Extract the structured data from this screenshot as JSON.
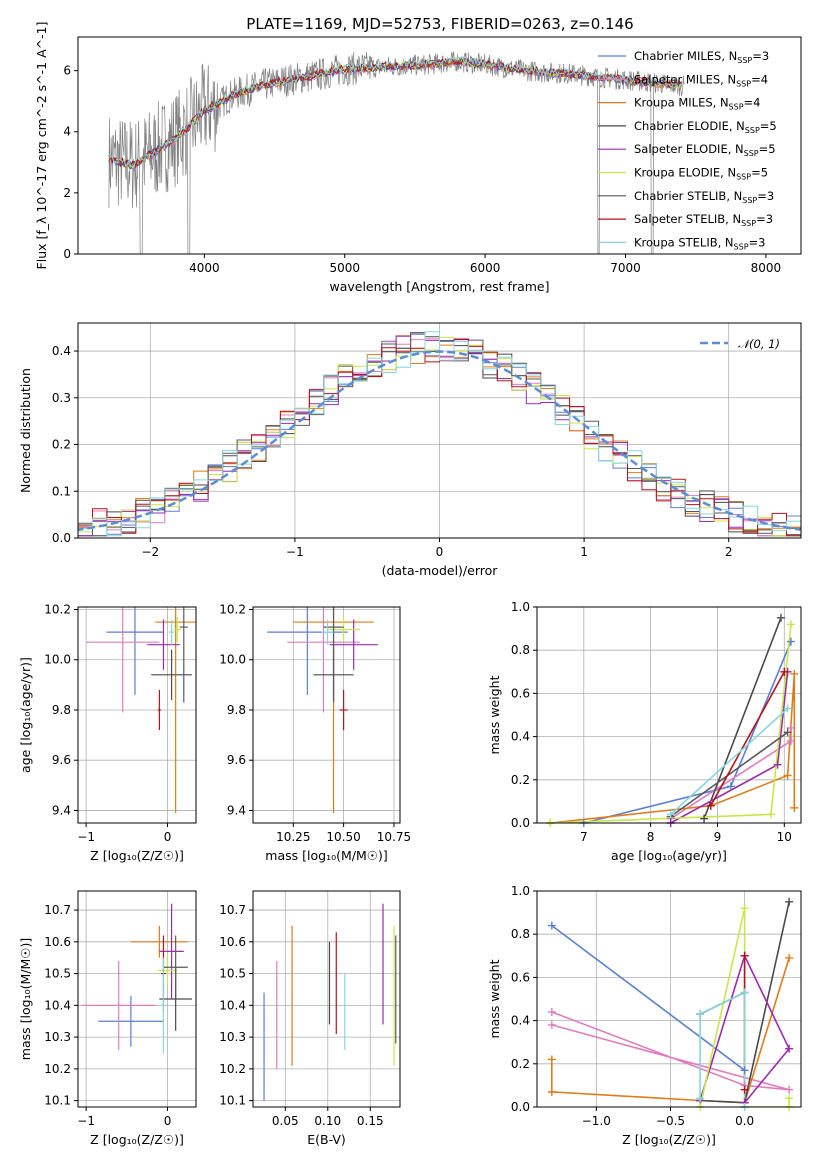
{
  "title": "PLATE=1169, MJD=52753, FIBERID=0263, z=0.146",
  "colors": {
    "Chabrier MILES": "#5b7fd6",
    "Salpeter MILES": "#e07cbf",
    "Kroupa MILES": "#e07b1a",
    "Chabrier ELODIE": "#4a4a4a",
    "Salpeter ELODIE": "#9b2bb0",
    "Kroupa ELODIE": "#c8e64a",
    "Chabrier STELIB": "#5a5a5a",
    "Salpeter STELIB": "#b5121b",
    "Kroupa STELIB": "#86d6e0",
    "data": "#808080",
    "normal": "#5b8dd6"
  },
  "chart_data": [
    {
      "id": "spectrum",
      "type": "line",
      "xlabel": "wavelength [Angstrom, rest frame]",
      "ylabel": "Flux [f_λ 10^-17 erg cm^-2 s^-1 A^-1]",
      "xlim": [
        3100,
        8250
      ],
      "ylim": [
        0,
        7.1
      ],
      "xticks": [
        "4000",
        "5000",
        "6000",
        "7000",
        "8000"
      ],
      "yticks": [
        "0",
        "2",
        "4",
        "6"
      ],
      "legend_position": "upper-right",
      "legend": [
        {
          "label": "Chabrier MILES, N",
          "sub": "SSP",
          "suffix": "=3",
          "model": "Chabrier MILES"
        },
        {
          "label": "Salpeter MILES, N",
          "sub": "SSP",
          "suffix": "=4",
          "model": "Salpeter MILES"
        },
        {
          "label": "Kroupa MILES, N",
          "sub": "SSP",
          "suffix": "=4",
          "model": "Kroupa MILES"
        },
        {
          "label": "Chabrier ELODIE, N",
          "sub": "SSP",
          "suffix": "=5",
          "model": "Chabrier ELODIE"
        },
        {
          "label": "Salpeter ELODIE, N",
          "sub": "SSP",
          "suffix": "=5",
          "model": "Salpeter ELODIE"
        },
        {
          "label": "Kroupa ELODIE, N",
          "sub": "SSP",
          "suffix": "=5",
          "model": "Kroupa ELODIE"
        },
        {
          "label": "Chabrier STELIB, N",
          "sub": "SSP",
          "suffix": "=3",
          "model": "Chabrier STELIB"
        },
        {
          "label": "Salpeter STELIB, N",
          "sub": "SSP",
          "suffix": "=3",
          "model": "Salpeter STELIB"
        },
        {
          "label": "Kroupa STELIB, N",
          "sub": "SSP",
          "suffix": "=3",
          "model": "Kroupa STELIB"
        }
      ],
      "model_curve": {
        "x": [
          3320,
          3400,
          3500,
          3600,
          3700,
          3800,
          3900,
          4000,
          4100,
          4200,
          4400,
          4600,
          4800,
          5000,
          5200,
          5400,
          5600,
          5800,
          6000,
          6200,
          6400,
          6600,
          6800,
          7000,
          7200,
          7400
        ],
        "y": [
          3.1,
          3.0,
          2.9,
          3.2,
          3.5,
          3.8,
          4.2,
          4.7,
          4.9,
          5.2,
          5.5,
          5.7,
          5.85,
          6.05,
          6.1,
          6.15,
          6.2,
          6.3,
          6.2,
          6.05,
          5.95,
          5.9,
          5.8,
          5.7,
          5.6,
          5.5
        ]
      }
    },
    {
      "id": "residuals",
      "type": "histogram",
      "xlabel": "(data-model)/error",
      "ylabel": "Normed distribution",
      "xlim": [
        -2.5,
        2.5
      ],
      "ylim": [
        0,
        0.46
      ],
      "xticks": [
        "−2",
        "−1",
        "0",
        "1",
        "2"
      ],
      "yticks": [
        "0.0",
        "0.1",
        "0.2",
        "0.3",
        "0.4"
      ],
      "legend": [
        {
          "label": "𝒩(0, 1)"
        }
      ],
      "reference_curve": "normal(0,1)",
      "bin_width": 0.1
    },
    {
      "id": "age-vs-Z",
      "type": "errorbar",
      "xlabel": "Z [log₁₀(Z/Z☉)]",
      "ylabel": "age  [log₁₀(age/yr)]",
      "xlim": [
        -1.1,
        0.35
      ],
      "ylim": [
        9.35,
        10.21
      ],
      "xticks": [
        "−1",
        "0"
      ],
      "yticks": [
        "9.4",
        "9.6",
        "9.8",
        "10.0",
        "10.2"
      ],
      "points": [
        {
          "model": "Chabrier MILES",
          "x": -0.4,
          "xerr": 0.35,
          "y": 10.11,
          "yerr": 0.25
        },
        {
          "model": "Salpeter MILES",
          "x": -0.55,
          "xerr": 0.45,
          "y": 10.07,
          "yerr": 0.28
        },
        {
          "model": "Kroupa MILES",
          "x": 0.1,
          "xerr": 0.25,
          "y": 10.15,
          "yerr": 0.76
        },
        {
          "model": "Chabrier ELODIE",
          "x": 0.05,
          "xerr": 0.25,
          "y": 9.94,
          "yerr": 0.1
        },
        {
          "model": "Salpeter ELODIE",
          "x": -0.05,
          "xerr": 0.2,
          "y": 10.06,
          "yerr": 0.1
        },
        {
          "model": "Kroupa ELODIE",
          "x": 0.12,
          "xerr": 0.05,
          "y": 10.12,
          "yerr": 0.05
        },
        {
          "model": "Chabrier STELIB",
          "x": 0.2,
          "xerr": 0.05,
          "y": 10.13,
          "yerr": 0.3
        },
        {
          "model": "Salpeter STELIB",
          "x": -0.1,
          "xerr": 0.02,
          "y": 9.8,
          "yerr": 0.08
        },
        {
          "model": "Kroupa STELIB",
          "x": 0.05,
          "xerr": 0.03,
          "y": 10.11,
          "yerr": 0.05
        }
      ]
    },
    {
      "id": "age-vs-mass",
      "type": "errorbar",
      "xlabel": "mass [log₁₀(M/M☉)]",
      "ylabel": "",
      "xlim": [
        10.05,
        10.78
      ],
      "ylim": [
        9.35,
        10.21
      ],
      "xticks": [
        "10.25",
        "10.50",
        "10.75"
      ],
      "yticks": [
        "9.4",
        "9.6",
        "9.8",
        "10.0",
        "10.2"
      ],
      "points": [
        {
          "model": "Chabrier MILES",
          "x": 10.32,
          "xerr": 0.2,
          "y": 10.11,
          "yerr": 0.25
        },
        {
          "model": "Salpeter MILES",
          "x": 10.4,
          "xerr": 0.18,
          "y": 10.07,
          "yerr": 0.28
        },
        {
          "model": "Kroupa MILES",
          "x": 10.45,
          "xerr": 0.2,
          "y": 10.15,
          "yerr": 0.76
        },
        {
          "model": "Chabrier ELODIE",
          "x": 10.45,
          "xerr": 0.1,
          "y": 9.94,
          "yerr": 0.1
        },
        {
          "model": "Salpeter ELODIE",
          "x": 10.55,
          "xerr": 0.12,
          "y": 10.06,
          "yerr": 0.1
        },
        {
          "model": "Kroupa ELODIE",
          "x": 10.5,
          "xerr": 0.08,
          "y": 10.12,
          "yerr": 0.05
        },
        {
          "model": "Chabrier STELIB",
          "x": 10.45,
          "xerr": 0.05,
          "y": 10.13,
          "yerr": 0.3
        },
        {
          "model": "Salpeter STELIB",
          "x": 10.5,
          "xerr": 0.02,
          "y": 9.8,
          "yerr": 0.08
        },
        {
          "model": "Kroupa STELIB",
          "x": 10.42,
          "xerr": 0.03,
          "y": 10.11,
          "yerr": 0.05
        }
      ]
    },
    {
      "id": "weight-vs-age",
      "type": "line",
      "xlabel": "age  [log₁₀(age/yr)]",
      "ylabel": "mass weight",
      "xlim": [
        6.3,
        10.25
      ],
      "ylim": [
        0,
        1
      ],
      "xticks": [
        "7",
        "8",
        "9",
        "10"
      ],
      "yticks": [
        "0.0",
        "0.2",
        "0.4",
        "0.6",
        "0.8",
        "1.0"
      ],
      "series": [
        {
          "model": "Chabrier MILES",
          "x": [
            7.0,
            9.2,
            10.1
          ],
          "y": [
            0.0,
            0.17,
            0.84
          ]
        },
        {
          "model": "Salpeter MILES",
          "x": [
            8.3,
            10.1,
            10.1
          ],
          "y": [
            0.02,
            0.38,
            0.44
          ]
        },
        {
          "model": "Kroupa MILES",
          "x": [
            6.5,
            8.9,
            10.05,
            10.15,
            10.15
          ],
          "y": [
            0.0,
            0.08,
            0.22,
            0.69,
            0.07
          ]
        },
        {
          "model": "Chabrier ELODIE",
          "x": [
            8.8,
            9.95
          ],
          "y": [
            0.02,
            0.95
          ]
        },
        {
          "model": "Salpeter ELODIE",
          "x": [
            8.3,
            9.9,
            10.05
          ],
          "y": [
            0.0,
            0.27,
            0.7
          ]
        },
        {
          "model": "Kroupa ELODIE",
          "x": [
            6.5,
            9.8,
            10.1
          ],
          "y": [
            0.0,
            0.04,
            0.92
          ]
        },
        {
          "model": "Chabrier STELIB",
          "x": [
            8.3,
            10.05
          ],
          "y": [
            0.03,
            0.42
          ]
        },
        {
          "model": "Salpeter STELIB",
          "x": [
            8.9,
            10.0
          ],
          "y": [
            0.08,
            0.7
          ]
        },
        {
          "model": "Kroupa STELIB",
          "x": [
            8.3,
            10.05
          ],
          "y": [
            0.04,
            0.53
          ]
        }
      ]
    },
    {
      "id": "mass-vs-Z",
      "type": "errorbar",
      "xlabel": "Z [log₁₀(Z/Z☉)]",
      "ylabel": "mass [log₁₀(M/M☉)]",
      "xlim": [
        -1.1,
        0.35
      ],
      "ylim": [
        10.08,
        10.76
      ],
      "xticks": [
        "−1",
        "0"
      ],
      "yticks": [
        "10.1",
        "10.2",
        "10.3",
        "10.4",
        "10.5",
        "10.6",
        "10.7"
      ],
      "points": [
        {
          "model": "Chabrier MILES",
          "x": -0.45,
          "xerr": 0.4,
          "y": 10.35,
          "yerr": 0.08
        },
        {
          "model": "Salpeter MILES",
          "x": -0.6,
          "xerr": 0.45,
          "y": 10.4,
          "yerr": 0.14
        },
        {
          "model": "Kroupa MILES",
          "x": -0.1,
          "xerr": 0.35,
          "y": 10.6,
          "yerr": 0.05
        },
        {
          "model": "Chabrier ELODIE",
          "x": 0.1,
          "xerr": 0.2,
          "y": 10.42,
          "yerr": 0.1
        },
        {
          "model": "Salpeter ELODIE",
          "x": 0.05,
          "xerr": 0.15,
          "y": 10.57,
          "yerr": 0.15
        },
        {
          "model": "Kroupa ELODIE",
          "x": 0.0,
          "xerr": 0.12,
          "y": 10.51,
          "yerr": 0.05
        },
        {
          "model": "Chabrier STELIB",
          "x": 0.1,
          "xerr": 0.15,
          "y": 10.52,
          "yerr": 0.1
        },
        {
          "model": "Salpeter STELIB",
          "x": -0.05,
          "xerr": 0.03,
          "y": 10.5,
          "yerr": 0.12
        },
        {
          "model": "Kroupa STELIB",
          "x": -0.05,
          "xerr": 0.05,
          "y": 10.4,
          "yerr": 0.15
        }
      ]
    },
    {
      "id": "mass-vs-ebv",
      "type": "errorbar",
      "xlabel": "E(B-V)",
      "ylabel": "",
      "xlim": [
        0.012,
        0.185
      ],
      "ylim": [
        10.08,
        10.76
      ],
      "xticks": [
        "0.05",
        "0.10",
        "0.15"
      ],
      "yticks": [
        "10.1",
        "10.2",
        "10.3",
        "10.4",
        "10.5",
        "10.6",
        "10.7"
      ],
      "points": [
        {
          "model": "Chabrier MILES",
          "x": 0.025,
          "y": 10.27,
          "yerr": 0.17
        },
        {
          "model": "Salpeter MILES",
          "x": 0.04,
          "y": 10.37,
          "yerr": 0.17
        },
        {
          "model": "Kroupa MILES",
          "x": 0.058,
          "y": 10.43,
          "yerr": 0.22
        },
        {
          "model": "Chabrier ELODIE",
          "x": 0.102,
          "y": 10.47,
          "yerr": 0.13
        },
        {
          "model": "Salpeter ELODIE",
          "x": 0.165,
          "y": 10.53,
          "yerr": 0.19
        },
        {
          "model": "Kroupa ELODIE",
          "x": 0.178,
          "y": 10.43,
          "yerr": 0.22
        },
        {
          "model": "Chabrier STELIB",
          "x": 0.18,
          "y": 10.45,
          "yerr": 0.17
        },
        {
          "model": "Salpeter STELIB",
          "x": 0.11,
          "y": 10.47,
          "yerr": 0.16
        },
        {
          "model": "Kroupa STELIB",
          "x": 0.12,
          "y": 10.38,
          "yerr": 0.12
        }
      ]
    },
    {
      "id": "weight-vs-Z",
      "type": "line",
      "xlabel": "Z [log₁₀(Z/Z☉)]",
      "ylabel": "mass weight",
      "xlim": [
        -1.4,
        0.38
      ],
      "ylim": [
        0,
        1
      ],
      "xticks": [
        "−1.0",
        "−0.5",
        "0.0"
      ],
      "yticks": [
        "0.0",
        "0.2",
        "0.4",
        "0.6",
        "0.8",
        "1.0"
      ],
      "series": [
        {
          "model": "Chabrier MILES",
          "x": [
            -1.3,
            0.0
          ],
          "y": [
            0.84,
            0.17
          ]
        },
        {
          "model": "Salpeter MILES",
          "x": [
            -1.3,
            0.0,
            0.3,
            -1.3
          ],
          "y": [
            0.44,
            0.1,
            0.08,
            0.38
          ]
        },
        {
          "model": "Kroupa MILES",
          "x": [
            -1.3,
            -1.3,
            -0.3,
            0.0,
            0.3
          ],
          "y": [
            0.22,
            0.07,
            0.03,
            0.02,
            0.69
          ]
        },
        {
          "model": "Chabrier ELODIE",
          "x": [
            -0.3,
            0.0,
            0.3
          ],
          "y": [
            0.03,
            0.02,
            0.95
          ]
        },
        {
          "model": "Salpeter ELODIE",
          "x": [
            -0.3,
            0.0,
            0.3,
            0.0
          ],
          "y": [
            0.03,
            0.7,
            0.27,
            0.02
          ]
        },
        {
          "model": "Kroupa ELODIE",
          "x": [
            -0.3,
            0.0,
            0.0,
            0.3,
            0.3
          ],
          "y": [
            0.0,
            0.92,
            0.0,
            0.0,
            0.04
          ]
        },
        {
          "model": "Chabrier STELIB",
          "x": [
            -0.3,
            0.0
          ],
          "y": [
            0.43,
            0.53
          ]
        },
        {
          "model": "Salpeter STELIB",
          "x": [
            0.0,
            0.0
          ],
          "y": [
            0.7,
            0.08
          ]
        },
        {
          "model": "Kroupa STELIB",
          "x": [
            -0.3,
            -0.3,
            0.0,
            0.0
          ],
          "y": [
            0.04,
            0.43,
            0.53,
            0.0
          ]
        }
      ]
    }
  ]
}
